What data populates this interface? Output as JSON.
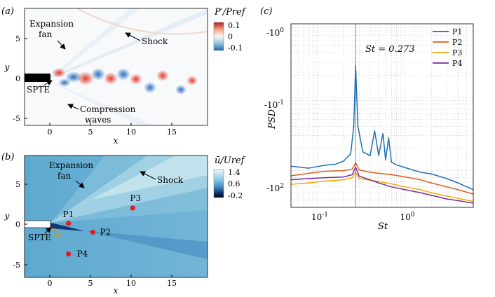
{
  "panels": {
    "a": {
      "label": "(a)",
      "xlabel": "x",
      "ylabel": "y",
      "xticks": [
        "0",
        "5",
        "10",
        "15"
      ],
      "yticks": [
        "5",
        "0",
        "-5"
      ],
      "colorbar": {
        "title": "P′/Pref",
        "ticks": [
          "0.1",
          "0",
          "-0.1"
        ]
      },
      "annotations": {
        "expansion": "Expansion",
        "fan": "fan",
        "shock": "Shock",
        "spte": "SPTE",
        "compression": "Compression",
        "waves": "waves"
      }
    },
    "b": {
      "label": "(b)",
      "xlabel": "x",
      "ylabel": "y",
      "xticks": [
        "0",
        "5",
        "10",
        "15"
      ],
      "yticks": [
        "5",
        "0",
        "-5"
      ],
      "colorbar": {
        "title": "ū/Uref",
        "ticks": [
          "1.4",
          "0.6",
          "-0.2"
        ]
      },
      "annotations": {
        "expansion": "Expansion",
        "fan": "fan",
        "shock": "Shock",
        "spte": "SPTE"
      },
      "probes": [
        {
          "name": "P1",
          "x": 2.3,
          "y": 0.1
        },
        {
          "name": "P2",
          "x": 5.3,
          "y": -1.0
        },
        {
          "name": "P3",
          "x": 10.2,
          "y": 2.0
        },
        {
          "name": "P4",
          "x": 2.3,
          "y": -3.7
        }
      ]
    }
  },
  "chart_data": {
    "type": "line",
    "panel_label": "(c)",
    "xlabel": "St",
    "ylabel": "PSD",
    "xscale": "log",
    "yscale": "log",
    "xlim": [
      0.05,
      6
    ],
    "ylim": [
      0.00316,
      1.0
    ],
    "yticks": [
      "-10^0",
      "-10^1",
      "-10^2"
    ],
    "xticks": [
      "10^-1",
      "10^0"
    ],
    "annotation": "St = 0.273",
    "vline": 0.273,
    "legend_position": "top-right",
    "series": [
      {
        "name": "P1",
        "color": "#1f6fb5",
        "x": [
          0.05,
          0.08,
          0.12,
          0.16,
          0.2,
          0.24,
          0.26,
          0.273,
          0.29,
          0.33,
          0.4,
          0.45,
          0.5,
          0.56,
          0.6,
          0.65,
          0.7,
          0.8,
          1.0,
          1.5,
          2,
          3,
          4,
          6
        ],
        "y": [
          0.0115,
          0.0108,
          0.0118,
          0.0122,
          0.0135,
          0.017,
          0.04,
          0.27,
          0.04,
          0.018,
          0.016,
          0.035,
          0.016,
          0.032,
          0.014,
          0.028,
          0.013,
          0.012,
          0.011,
          0.0095,
          0.009,
          0.0078,
          0.0068,
          0.0055
        ]
      },
      {
        "name": "P2",
        "color": "#d95f1e",
        "x": [
          0.05,
          0.08,
          0.12,
          0.2,
          0.25,
          0.273,
          0.3,
          0.4,
          0.5,
          0.7,
          1.0,
          1.5,
          2,
          3,
          4,
          6
        ],
        "y": [
          0.0085,
          0.0092,
          0.0098,
          0.01,
          0.0105,
          0.0128,
          0.0102,
          0.0095,
          0.0092,
          0.0088,
          0.0082,
          0.0075,
          0.0068,
          0.006,
          0.0055,
          0.0048
        ]
      },
      {
        "name": "P3",
        "color": "#f2a900",
        "x": [
          0.05,
          0.08,
          0.12,
          0.2,
          0.25,
          0.273,
          0.3,
          0.4,
          0.5,
          0.7,
          1.0,
          1.5,
          2,
          3,
          4,
          6
        ],
        "y": [
          0.0065,
          0.0068,
          0.0072,
          0.0075,
          0.008,
          0.0095,
          0.0078,
          0.0074,
          0.0071,
          0.0066,
          0.006,
          0.0055,
          0.005,
          0.0045,
          0.0042,
          0.0038
        ]
      },
      {
        "name": "P4",
        "color": "#7a2c9a",
        "x": [
          0.05,
          0.08,
          0.12,
          0.2,
          0.25,
          0.273,
          0.3,
          0.4,
          0.5,
          0.7,
          1.0,
          1.5,
          2,
          3,
          4,
          6
        ],
        "y": [
          0.0075,
          0.0078,
          0.008,
          0.0082,
          0.0088,
          0.0112,
          0.0084,
          0.0075,
          0.0068,
          0.006,
          0.0055,
          0.005,
          0.0046,
          0.0041,
          0.0039,
          0.0036
        ]
      }
    ]
  }
}
